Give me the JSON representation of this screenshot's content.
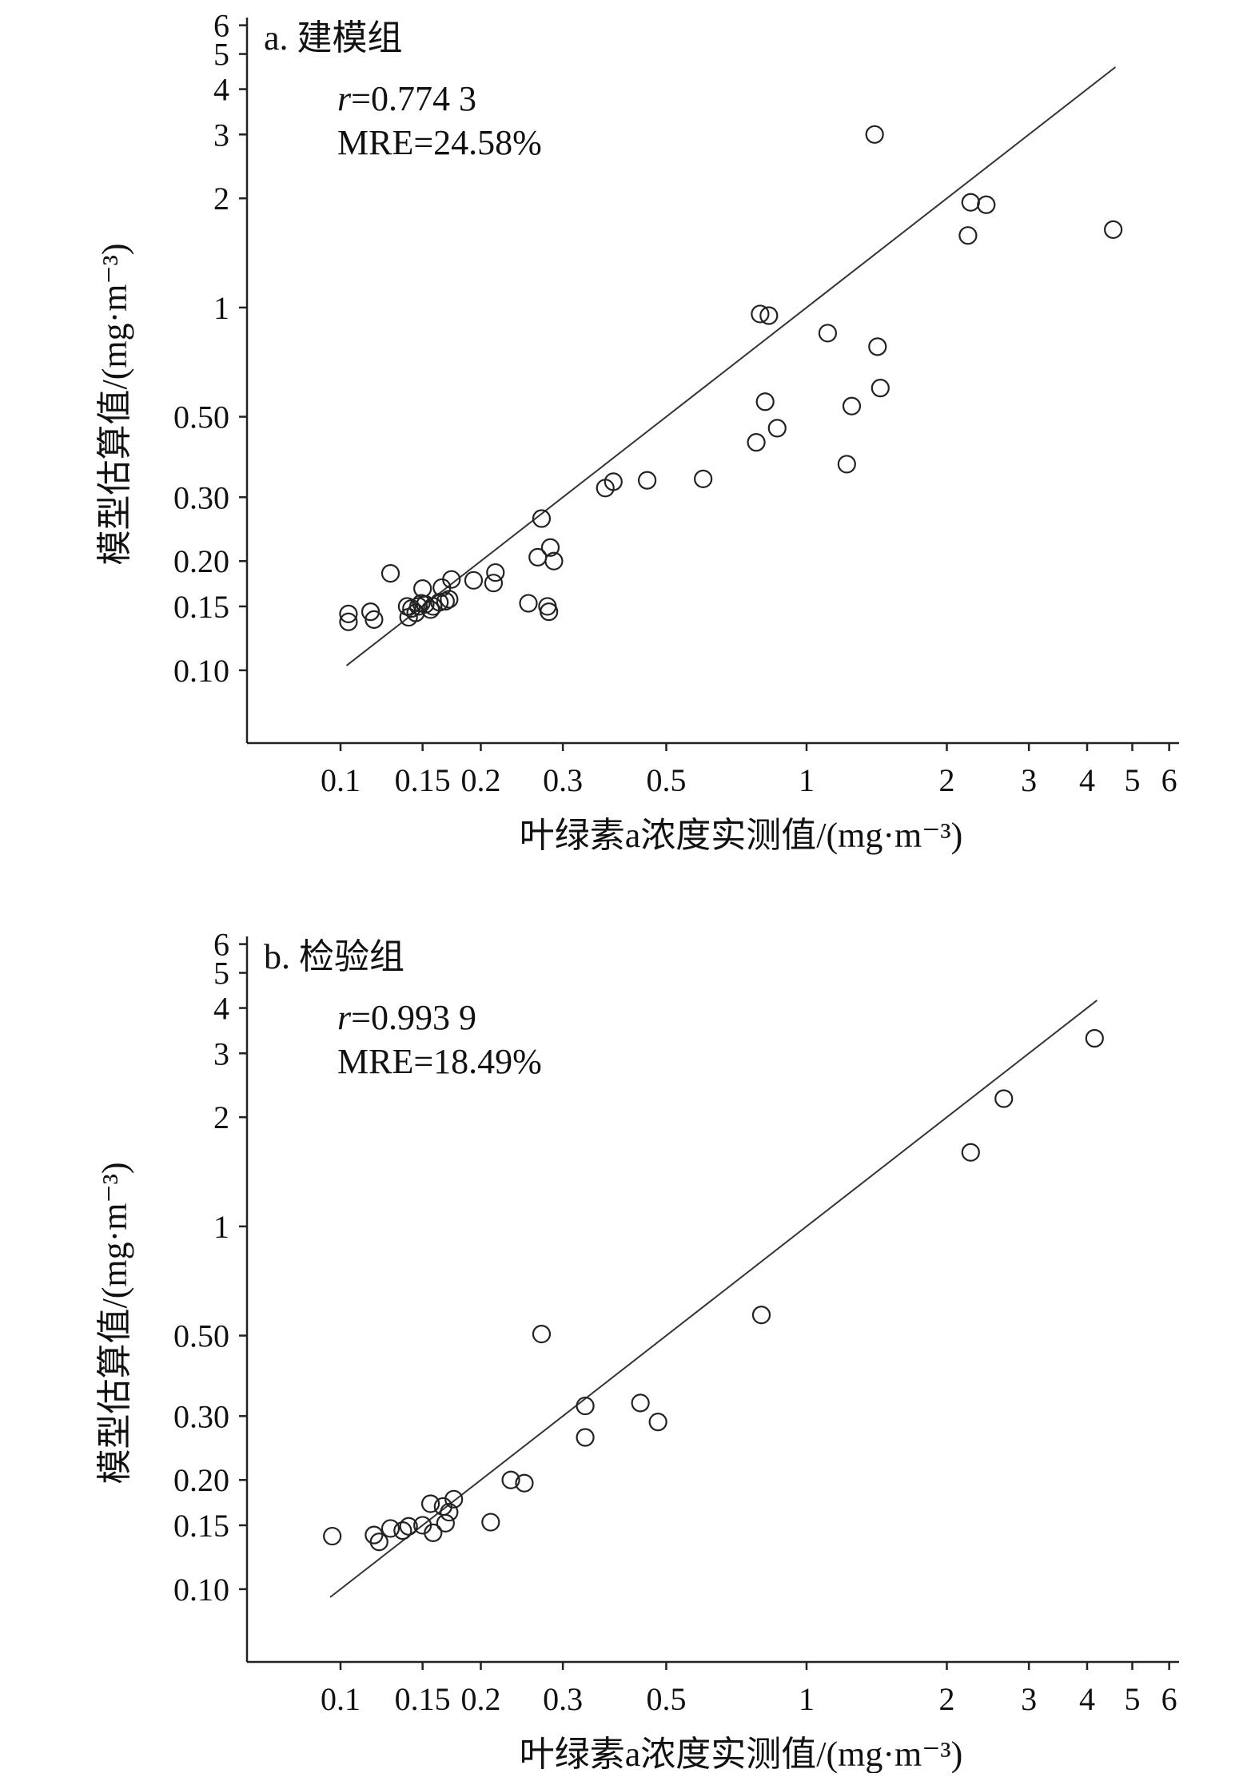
{
  "chart_data": [
    {
      "type": "scatter",
      "title": "a. 建模组",
      "stats": {
        "r_symbol": "r",
        "r_value": "=0.774 3",
        "mre": "MRE=24.58%"
      },
      "xlabel": "叶绿素a浓度实测值/(mg·m⁻³)",
      "ylabel": "模型估算值/(mg·m⁻³)",
      "x_scale": "log",
      "y_scale": "log",
      "xlim": [
        0.063,
        6.3
      ],
      "ylim": [
        0.063,
        6.3
      ],
      "x_ticks": [
        {
          "v": 0.1,
          "label": "0.1"
        },
        {
          "v": 0.15,
          "label": "0.15"
        },
        {
          "v": 0.2,
          "label": "0.2"
        },
        {
          "v": 0.3,
          "label": "0.3"
        },
        {
          "v": 0.5,
          "label": "0.5"
        },
        {
          "v": 1,
          "label": "1"
        },
        {
          "v": 2,
          "label": "2"
        },
        {
          "v": 3,
          "label": "3"
        },
        {
          "v": 4,
          "label": "4"
        },
        {
          "v": 5,
          "label": "5"
        },
        {
          "v": 6,
          "label": "6"
        }
      ],
      "y_ticks": [
        {
          "v": 0.1,
          "label": "0.10"
        },
        {
          "v": 0.15,
          "label": "0.15"
        },
        {
          "v": 0.2,
          "label": "0.20"
        },
        {
          "v": 0.3,
          "label": "0.30"
        },
        {
          "v": 0.5,
          "label": "0.50"
        },
        {
          "v": 1,
          "label": "1"
        },
        {
          "v": 2,
          "label": "2"
        },
        {
          "v": 3,
          "label": "3"
        },
        {
          "v": 4,
          "label": "4"
        },
        {
          "v": 5,
          "label": "5"
        },
        {
          "v": 6,
          "label": "6"
        }
      ],
      "fit_line": [
        [
          0.103,
          0.103
        ],
        [
          4.6,
          4.6
        ]
      ],
      "points": [
        [
          0.104,
          0.143
        ],
        [
          0.104,
          0.136
        ],
        [
          0.116,
          0.145
        ],
        [
          0.118,
          0.138
        ],
        [
          0.128,
          0.185
        ],
        [
          0.139,
          0.15
        ],
        [
          0.14,
          0.14
        ],
        [
          0.142,
          0.148
        ],
        [
          0.145,
          0.144
        ],
        [
          0.147,
          0.15
        ],
        [
          0.149,
          0.153
        ],
        [
          0.15,
          0.168
        ],
        [
          0.152,
          0.152
        ],
        [
          0.156,
          0.147
        ],
        [
          0.158,
          0.15
        ],
        [
          0.163,
          0.154
        ],
        [
          0.165,
          0.169
        ],
        [
          0.168,
          0.155
        ],
        [
          0.171,
          0.157
        ],
        [
          0.173,
          0.178
        ],
        [
          0.193,
          0.177
        ],
        [
          0.213,
          0.174
        ],
        [
          0.215,
          0.186
        ],
        [
          0.253,
          0.153
        ],
        [
          0.265,
          0.205
        ],
        [
          0.27,
          0.262
        ],
        [
          0.278,
          0.15
        ],
        [
          0.28,
          0.145
        ],
        [
          0.282,
          0.218
        ],
        [
          0.287,
          0.2
        ],
        [
          0.37,
          0.318
        ],
        [
          0.385,
          0.331
        ],
        [
          0.455,
          0.334
        ],
        [
          0.6,
          0.337
        ],
        [
          0.78,
          0.425
        ],
        [
          0.795,
          0.96
        ],
        [
          0.815,
          0.55
        ],
        [
          0.83,
          0.95
        ],
        [
          0.865,
          0.465
        ],
        [
          1.11,
          0.85
        ],
        [
          1.22,
          0.37
        ],
        [
          1.25,
          0.535
        ],
        [
          1.4,
          3.0
        ],
        [
          1.42,
          0.78
        ],
        [
          1.44,
          0.6
        ],
        [
          2.22,
          1.58
        ],
        [
          2.25,
          1.95
        ],
        [
          2.43,
          1.92
        ],
        [
          4.55,
          1.64
        ]
      ]
    },
    {
      "type": "scatter",
      "title": "b. 检验组",
      "stats": {
        "r_symbol": "r",
        "r_value": "=0.993 9",
        "mre": "MRE=18.49%"
      },
      "xlabel": "叶绿素a浓度实测值/(mg·m⁻³)",
      "ylabel": "模型估算值/(mg·m⁻³)",
      "x_scale": "log",
      "y_scale": "log",
      "xlim": [
        0.063,
        6.3
      ],
      "ylim": [
        0.063,
        6.3
      ],
      "x_ticks": [
        {
          "v": 0.1,
          "label": "0.1"
        },
        {
          "v": 0.15,
          "label": "0.15"
        },
        {
          "v": 0.2,
          "label": "0.2"
        },
        {
          "v": 0.3,
          "label": "0.3"
        },
        {
          "v": 0.5,
          "label": "0.5"
        },
        {
          "v": 1,
          "label": "1"
        },
        {
          "v": 2,
          "label": "2"
        },
        {
          "v": 3,
          "label": "3"
        },
        {
          "v": 4,
          "label": "4"
        },
        {
          "v": 5,
          "label": "5"
        },
        {
          "v": 6,
          "label": "6"
        }
      ],
      "y_ticks": [
        {
          "v": 0.1,
          "label": "0.10"
        },
        {
          "v": 0.15,
          "label": "0.15"
        },
        {
          "v": 0.2,
          "label": "0.20"
        },
        {
          "v": 0.3,
          "label": "0.30"
        },
        {
          "v": 0.5,
          "label": "0.50"
        },
        {
          "v": 1,
          "label": "1"
        },
        {
          "v": 2,
          "label": "2"
        },
        {
          "v": 3,
          "label": "3"
        },
        {
          "v": 4,
          "label": "4"
        },
        {
          "v": 5,
          "label": "5"
        },
        {
          "v": 6,
          "label": "6"
        }
      ],
      "fit_line": [
        [
          0.095,
          0.095
        ],
        [
          4.2,
          4.2
        ]
      ],
      "points": [
        [
          0.096,
          0.14
        ],
        [
          0.118,
          0.141
        ],
        [
          0.121,
          0.135
        ],
        [
          0.128,
          0.147
        ],
        [
          0.136,
          0.145
        ],
        [
          0.14,
          0.149
        ],
        [
          0.15,
          0.15
        ],
        [
          0.156,
          0.172
        ],
        [
          0.158,
          0.143
        ],
        [
          0.166,
          0.169
        ],
        [
          0.168,
          0.152
        ],
        [
          0.171,
          0.163
        ],
        [
          0.175,
          0.177
        ],
        [
          0.21,
          0.153
        ],
        [
          0.232,
          0.2
        ],
        [
          0.248,
          0.196
        ],
        [
          0.27,
          0.505
        ],
        [
          0.335,
          0.32
        ],
        [
          0.335,
          0.262
        ],
        [
          0.44,
          0.326
        ],
        [
          0.48,
          0.289
        ],
        [
          0.8,
          0.57
        ],
        [
          2.25,
          1.6
        ],
        [
          2.65,
          2.25
        ],
        [
          4.15,
          3.3
        ]
      ]
    }
  ]
}
